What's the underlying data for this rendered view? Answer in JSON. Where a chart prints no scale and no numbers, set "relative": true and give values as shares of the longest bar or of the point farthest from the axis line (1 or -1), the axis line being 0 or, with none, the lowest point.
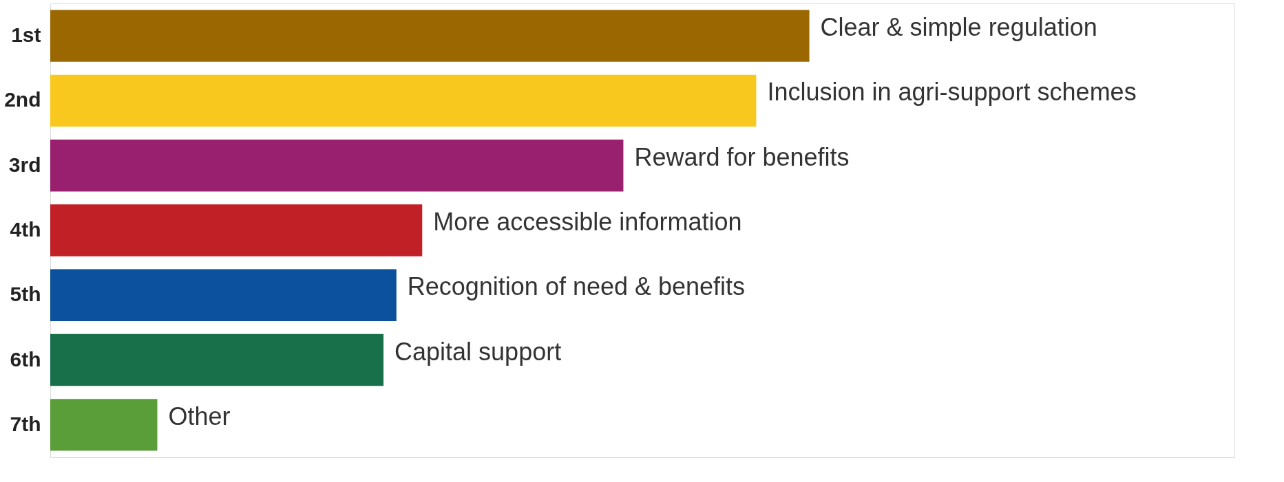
{
  "chart_data": {
    "type": "bar",
    "orientation": "horizontal",
    "relative": true,
    "grid": false,
    "tick_labels": "y",
    "categories": [
      "1st",
      "2nd",
      "3rd",
      "4th",
      "5th",
      "6th",
      "7th"
    ],
    "values": [
      1,
      0.93,
      0.755,
      0.49,
      0.456,
      0.439,
      0.141
    ],
    "colors": [
      "#9a6700",
      "#f8c81f",
      "#98206e",
      "#c02026",
      "#0b519e",
      "#17704a",
      "#5a9e3a"
    ],
    "annotations": [
      {
        "text": "Clear & simple regulation",
        "x": 1,
        "y": "1st"
      },
      {
        "text": "Inclusion in agri-support schemes",
        "x": 0.93,
        "y": "2nd"
      },
      {
        "text": "Reward for benefits",
        "x": 0.755,
        "y": "3rd"
      },
      {
        "text": "More accessible information",
        "x": 0.49,
        "y": "4th"
      },
      {
        "text": "Recognition of need & benefits",
        "x": 0.456,
        "y": "5th"
      },
      {
        "text": "Capital support",
        "x": 0.439,
        "y": "6th"
      },
      {
        "text": "Other",
        "x": 0.141,
        "y": "7th"
      }
    ]
  }
}
